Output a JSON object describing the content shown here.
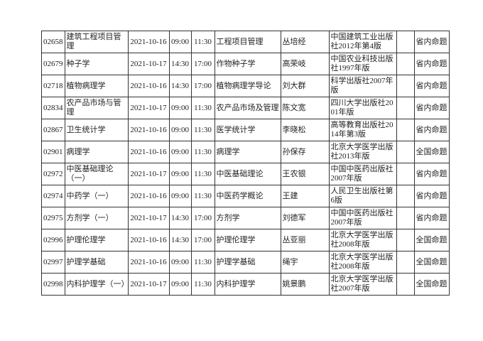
{
  "rows": [
    {
      "code": "02658",
      "course": "建筑工程项目管理",
      "date": "2021-10-16",
      "start": "09:00",
      "end": "11:30",
      "textbook": "工程项目管理",
      "author": "丛培经",
      "publisher": "中国建筑工业出版社2012年第4版",
      "note": "",
      "type": "省内命题"
    },
    {
      "code": "02679",
      "course": "种子学",
      "date": "2021-10-17",
      "start": "14:30",
      "end": "17:00",
      "textbook": "作物种子学",
      "author": "高荣岐",
      "publisher": "中国农业科技出版社1997年版",
      "note": "",
      "type": "省内命题"
    },
    {
      "code": "02718",
      "course": "植物病理学",
      "date": "2021-10-16",
      "start": "14:30",
      "end": "17:00",
      "textbook": "植物病理学导论",
      "author": "刘大群",
      "publisher": "科学出版社2007年版",
      "note": "",
      "type": "省内命题"
    },
    {
      "code": "02834",
      "course": "农产品市场与管理",
      "date": "2021-10-17",
      "start": "09:00",
      "end": "11:30",
      "textbook": "农产品市场及管理",
      "author": "陈文宽",
      "publisher": "四川大学出版社2001年版",
      "note": "",
      "type": "省内命题"
    },
    {
      "code": "02867",
      "course": "卫生统计学",
      "date": "2021-10-16",
      "start": "09:00",
      "end": "11:30",
      "textbook": "医学统计学",
      "author": "李晓松",
      "publisher": "高等教育出版社2014年第3版",
      "note": "",
      "type": "省内命题"
    },
    {
      "code": "02901",
      "course": "病理学",
      "date": "2021-10-16",
      "start": "09:00",
      "end": "11:30",
      "textbook": "病理学",
      "author": "孙保存",
      "publisher": "北京大学医学出版社2013年版",
      "note": "",
      "type": "全国命题"
    },
    {
      "code": "02972",
      "course": "中医基础理论（一）",
      "date": "2021-10-17",
      "start": "09:00",
      "end": "11:30",
      "textbook": "中医基础理论",
      "author": "王农银",
      "publisher": "中国中医药出版社2007年版",
      "note": "",
      "type": "省内命题"
    },
    {
      "code": "02974",
      "course": "中药学（一）",
      "date": "2021-10-16",
      "start": "09:00",
      "end": "11:30",
      "textbook": "中医药学概论",
      "author": "王建",
      "publisher": "人民卫生出版社第6版",
      "note": "",
      "type": "省内命题"
    },
    {
      "code": "02975",
      "course": "方剂学（一）",
      "date": "2021-10-17",
      "start": "14:30",
      "end": "17:00",
      "textbook": "方剂学",
      "author": "刘德军",
      "publisher": "中国中医药出版社2007年版",
      "note": "",
      "type": "省内命题"
    },
    {
      "code": "02996",
      "course": "护理伦理学",
      "date": "2021-10-16",
      "start": "14:30",
      "end": "17:00",
      "textbook": "护理伦理学",
      "author": "丛亚丽",
      "publisher": "北京大学医学出版社2008年版",
      "note": "",
      "type": "全国命题"
    },
    {
      "code": "02997",
      "course": "护理学基础",
      "date": "2021-10-16",
      "start": "09:00",
      "end": "11:30",
      "textbook": "护理学基础",
      "author": "绳宇",
      "publisher": "北京大学医学出版社2008年版",
      "note": "",
      "type": "全国命题"
    },
    {
      "code": "02998",
      "course": "内科护理学（一）",
      "date": "2021-10-17",
      "start": "09:00",
      "end": "11:30",
      "textbook": "内科护理学",
      "author": "姚景鹏",
      "publisher": "北京大学医学出版社2007年版",
      "note": "",
      "type": "全国命题"
    }
  ]
}
